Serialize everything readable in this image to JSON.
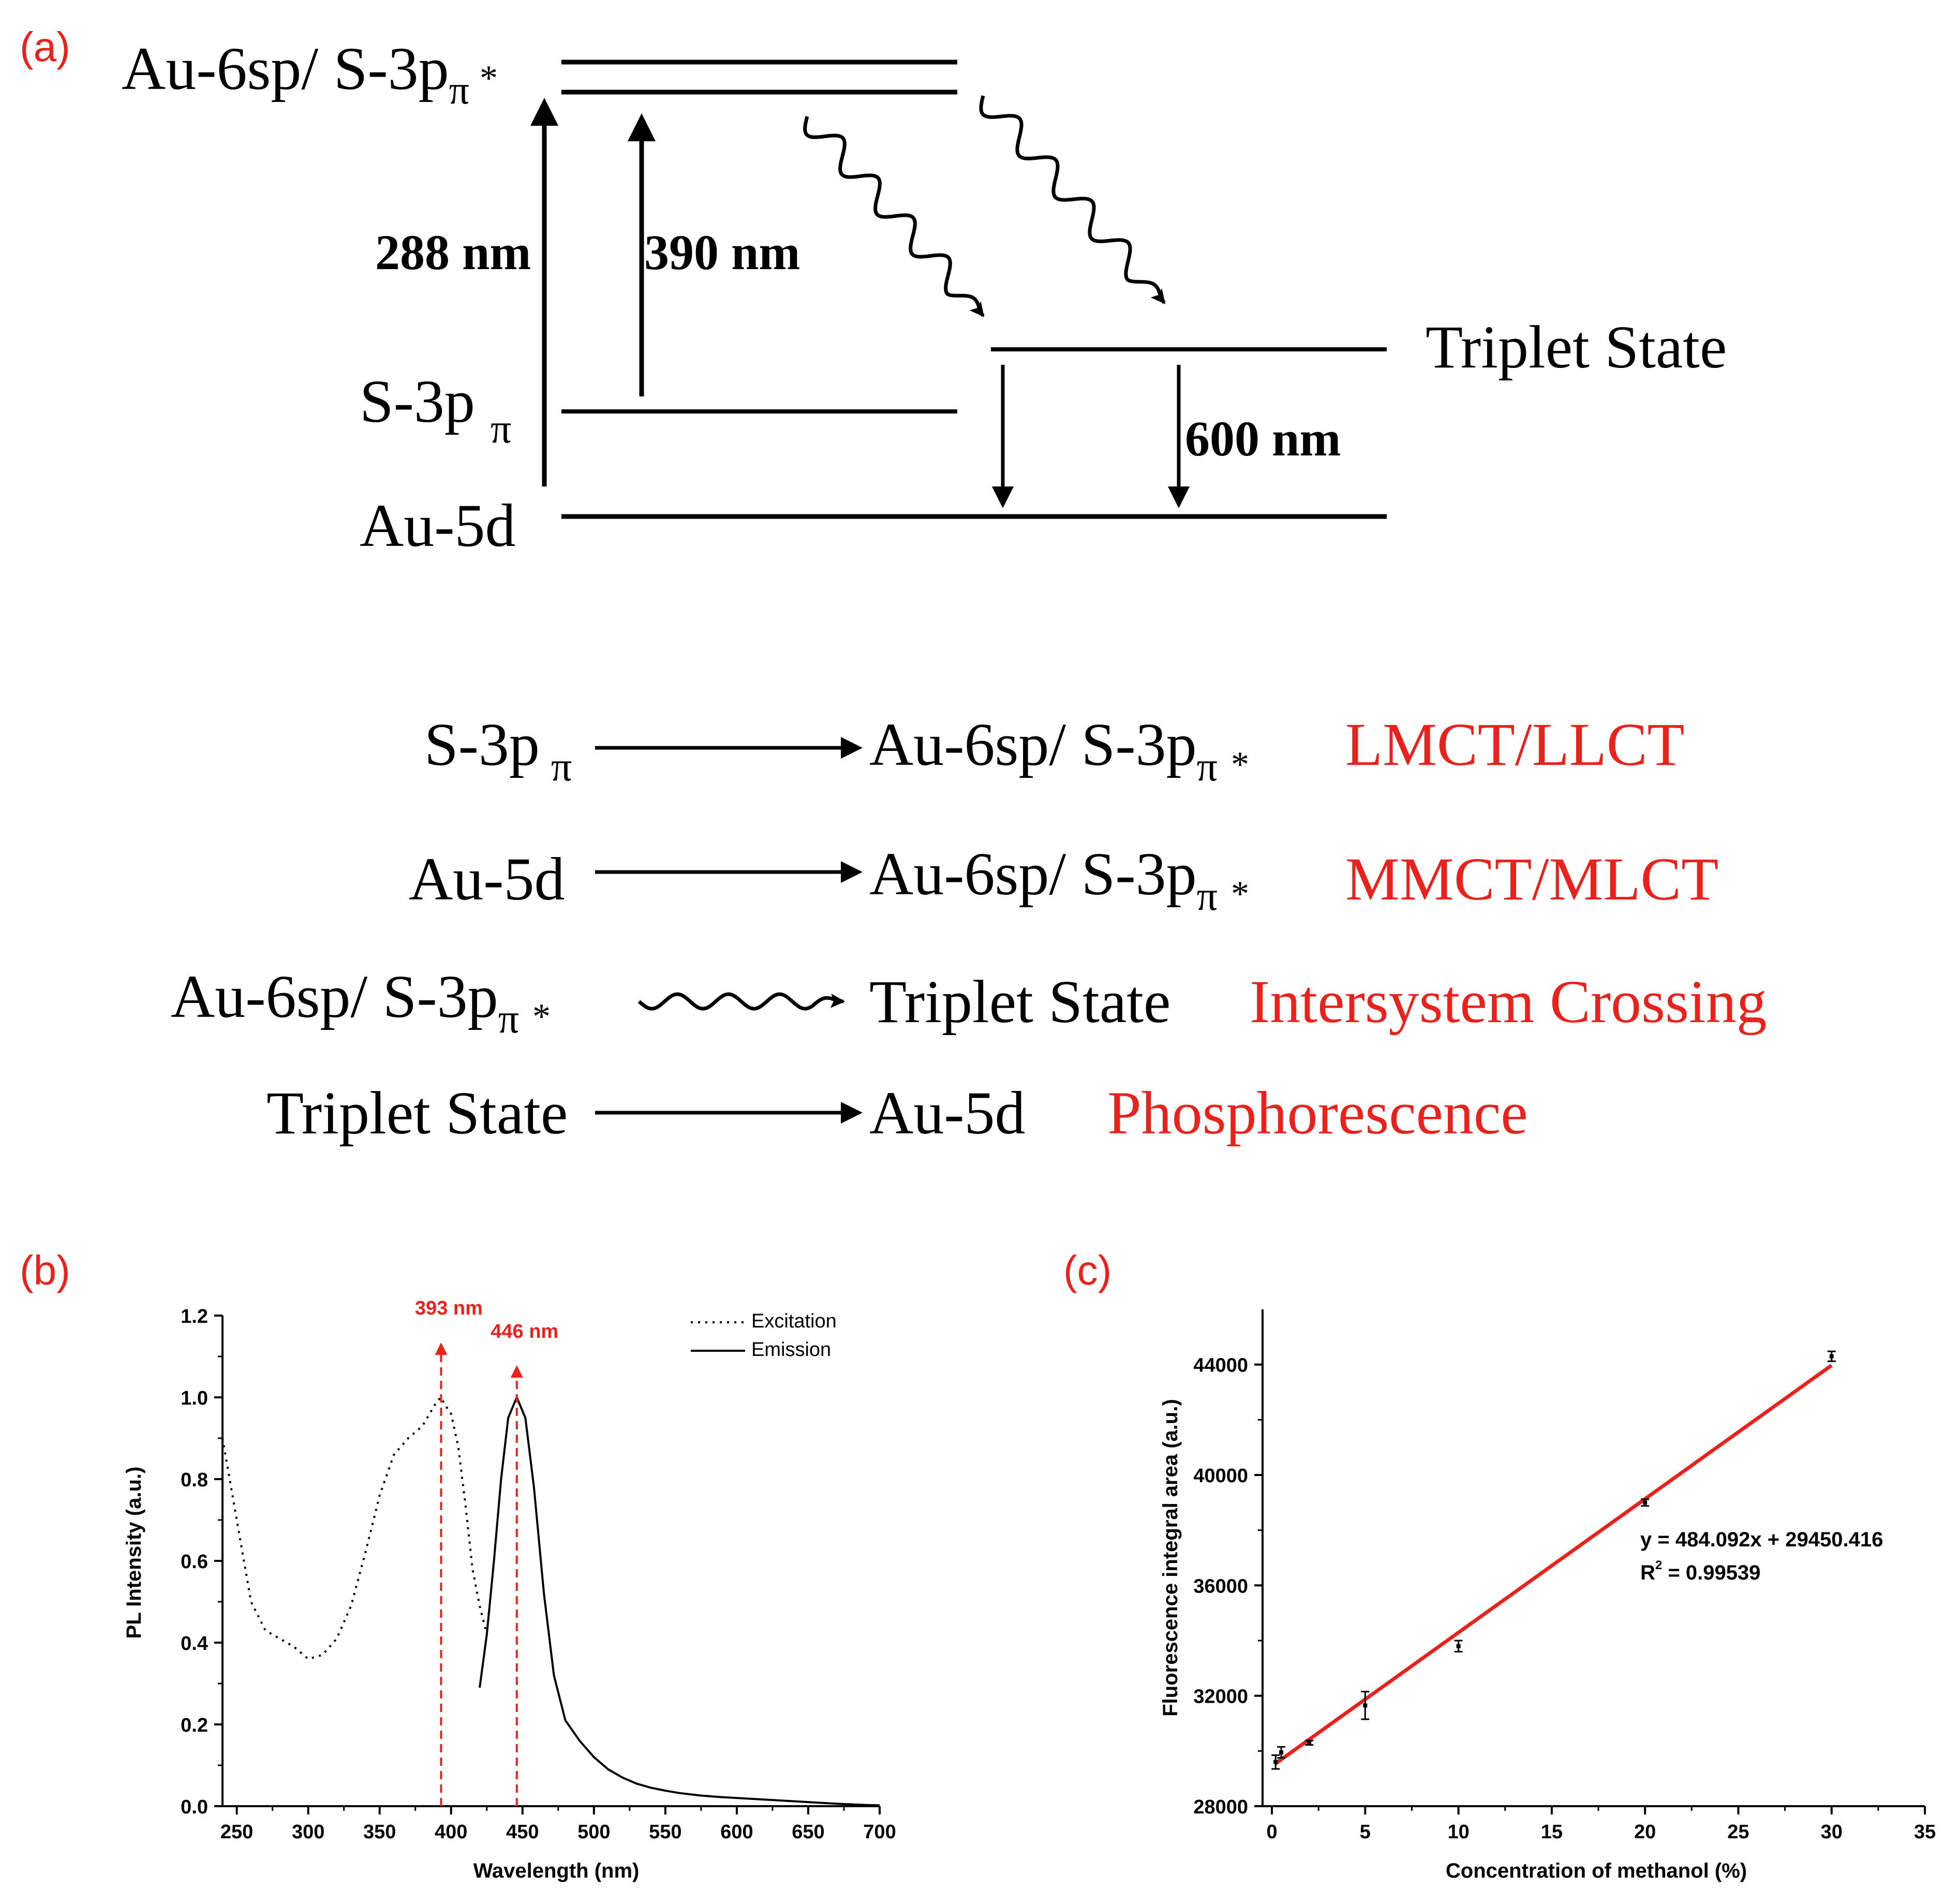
{
  "panel_a": {
    "label": "(a)",
    "levels": {
      "excited": "Au-6sp/ S-3p",
      "excited_sub": "π",
      "excited_star": "*",
      "s3p": "S-3p",
      "s3p_sub": "π",
      "au5d": "Au-5d",
      "triplet": "Triplet State"
    },
    "transitions": {
      "t288": "288 nm",
      "t390": "390 nm",
      "t600": "600 nm"
    },
    "rows": [
      {
        "from": "S-3p",
        "from_sub": "π",
        "to": "Au-6sp/ S-3p",
        "to_sub": "π",
        "to_star": "*",
        "name": "LMCT/LLCT"
      },
      {
        "from": "Au-5d",
        "to": "Au-6sp/ S-3p",
        "to_sub": "π",
        "to_star": "*",
        "name": "MMCT/MLCT"
      },
      {
        "from": "Au-6sp/ S-3p",
        "from_sub": "π",
        "from_star": "*",
        "to": "Triplet State",
        "name": "Intersystem Crossing"
      },
      {
        "from": "Triplet State",
        "to": "Au-5d",
        "name": "Phosphorescence"
      }
    ]
  },
  "colors": {
    "red": "#e8231e",
    "black": "#000000"
  },
  "chart_data": [
    {
      "panel": "(b)",
      "type": "line",
      "xlabel": "Wavelength (nm)",
      "ylabel": "PL Intensity (a.u.)",
      "xlim": [
        240,
        700
      ],
      "ylim": [
        0,
        1.2
      ],
      "xticks": [
        250,
        300,
        350,
        400,
        450,
        500,
        550,
        600,
        650,
        700
      ],
      "yticks": [
        0.0,
        0.2,
        0.4,
        0.6,
        0.8,
        1.0,
        1.2
      ],
      "legend_position": "top-right",
      "series": [
        {
          "name": "Excitation",
          "style": "dotted",
          "x": [
            240,
            250,
            260,
            270,
            280,
            290,
            300,
            310,
            320,
            330,
            340,
            350,
            360,
            370,
            380,
            385,
            390,
            393,
            396,
            400,
            405,
            410,
            415,
            420,
            425
          ],
          "y": [
            0.9,
            0.7,
            0.5,
            0.43,
            0.41,
            0.39,
            0.36,
            0.37,
            0.41,
            0.49,
            0.62,
            0.76,
            0.86,
            0.9,
            0.93,
            0.96,
            0.99,
            1.0,
            0.98,
            0.96,
            0.88,
            0.74,
            0.58,
            0.49,
            0.42
          ]
        },
        {
          "name": "Emission",
          "style": "solid",
          "x": [
            420,
            425,
            430,
            435,
            440,
            446,
            452,
            458,
            465,
            472,
            480,
            490,
            500,
            510,
            520,
            530,
            540,
            550,
            560,
            575,
            590,
            610,
            630,
            650,
            670,
            690,
            700
          ],
          "y": [
            0.29,
            0.42,
            0.6,
            0.8,
            0.95,
            1.0,
            0.95,
            0.78,
            0.52,
            0.32,
            0.21,
            0.16,
            0.12,
            0.09,
            0.07,
            0.055,
            0.045,
            0.038,
            0.032,
            0.026,
            0.022,
            0.018,
            0.014,
            0.01,
            0.006,
            0.003,
            0.002
          ]
        }
      ],
      "annotations": [
        {
          "x": 393,
          "label": "393 nm"
        },
        {
          "x": 446,
          "label": "446 nm"
        }
      ]
    },
    {
      "panel": "(c)",
      "type": "scatter",
      "xlabel": "Concentration of methanol (%)",
      "ylabel": "Fluorescence integral area (a.u.)",
      "xlim": [
        -0.5,
        35
      ],
      "ylim": [
        28000,
        46000
      ],
      "xticks": [
        0,
        5,
        10,
        15,
        20,
        25,
        30,
        35
      ],
      "yticks": [
        28000,
        32000,
        36000,
        40000,
        44000
      ],
      "points": {
        "x": [
          0.2,
          0.5,
          2,
          5,
          10,
          20,
          30
        ],
        "y": [
          29600,
          29950,
          30300,
          31650,
          33800,
          39000,
          44300
        ],
        "err": [
          250,
          200,
          80,
          500,
          200,
          120,
          180
        ]
      },
      "fit": {
        "slope": 484.092,
        "intercept": 29450.416,
        "x": [
          0.2,
          30
        ]
      },
      "equation": "y = 484.092x + 29450.416",
      "r2_label": "R",
      "r2_sup": "2",
      "r2_value": " = 0.99539"
    }
  ]
}
